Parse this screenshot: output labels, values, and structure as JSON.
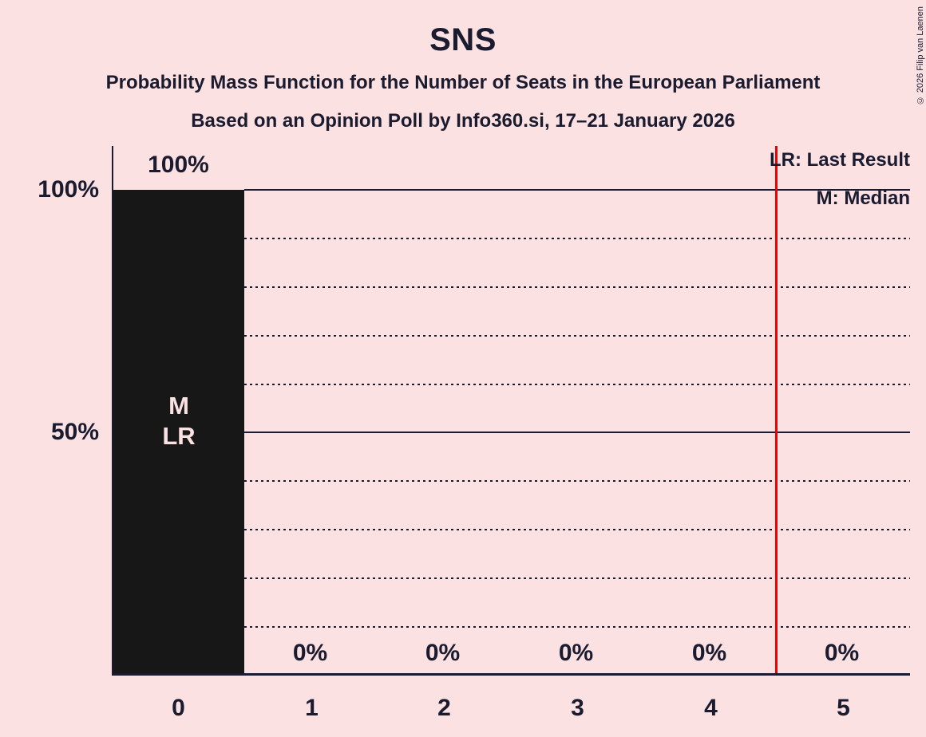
{
  "title": "SNS",
  "subtitle1": "Probability Mass Function for the Number of Seats in the European Parliament",
  "subtitle2": "Based on an Opinion Poll by Info360.si, 17–21 January 2026",
  "copyright": "© 2026 Filip van Laenen",
  "legend": {
    "lr": "LR: Last Result",
    "m": "M: Median"
  },
  "y_axis": {
    "t100": "100%",
    "t50": "50%"
  },
  "x_axis": {
    "ticks": [
      "0",
      "1",
      "2",
      "3",
      "4",
      "5"
    ]
  },
  "bar0": {
    "value_label": "100%",
    "median_marker": "M",
    "last_result_marker": "LR"
  },
  "zero_value_labels": [
    "0%",
    "0%",
    "0%",
    "0%",
    "0%"
  ],
  "colors": {
    "background": "#FBE1E2",
    "ink": "#1B1B2F",
    "bar_fill": "#171717",
    "bar_marker_text": "#FBE1E2",
    "last_result_line": "#F00000"
  },
  "chart_data": {
    "type": "bar",
    "title": "SNS",
    "subtitle": "Probability Mass Function for the Number of Seats in the European Parliament",
    "source_line": "Based on an Opinion Poll by Info360.si, 17–21 January 2026",
    "categories": [
      "0",
      "1",
      "2",
      "3",
      "4",
      "5"
    ],
    "values": [
      100,
      0,
      0,
      0,
      0,
      0
    ],
    "value_labels": [
      "100%",
      "0%",
      "0%",
      "0%",
      "0%",
      "0%"
    ],
    "ylim": [
      0,
      100
    ],
    "y_tick_labels": [
      "100%",
      "50%"
    ],
    "y_tick_values": [
      100,
      50
    ],
    "gridlines": {
      "solid_percent": [
        100,
        50
      ],
      "dotted_percent": [
        90,
        80,
        70,
        60,
        40,
        30,
        20,
        10
      ]
    },
    "legend_entries": [
      "LR: Last Result",
      "M: Median"
    ],
    "markers": {
      "median_category": "0",
      "last_result_category": "0",
      "red_vertical_line_x": 4.5
    },
    "legend_position": "top-right",
    "grid": true
  }
}
